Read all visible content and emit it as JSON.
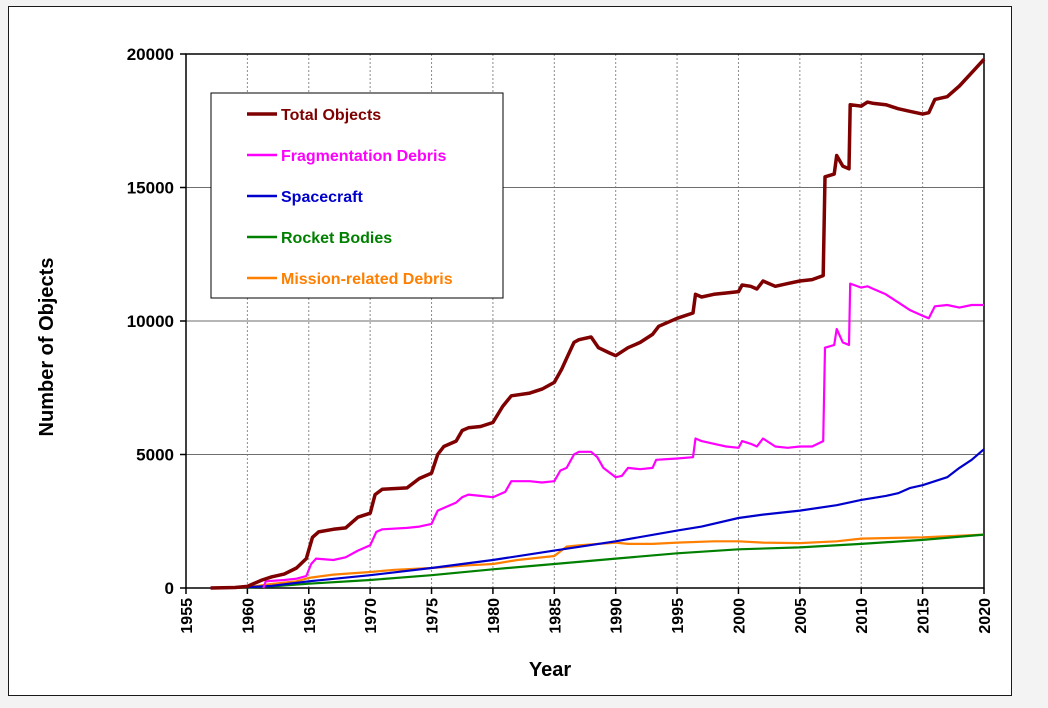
{
  "chart_data": {
    "type": "line",
    "title": "",
    "xlabel": "Year",
    "ylabel": "Number of Objects",
    "xlim": [
      1955,
      2020
    ],
    "ylim": [
      0,
      20000
    ],
    "x_ticks": [
      "1955",
      "1960",
      "1965",
      "1970",
      "1975",
      "1980",
      "1985",
      "1990",
      "1995",
      "2000",
      "2005",
      "2010",
      "2015",
      "2020"
    ],
    "y_ticks": [
      "0",
      "5000",
      "10000",
      "15000",
      "20000"
    ],
    "grid": true,
    "legend_position": "top-left",
    "series": [
      {
        "name": "Total Objects",
        "color": "#7f0000",
        "points": [
          [
            1957,
            0
          ],
          [
            1959,
            20
          ],
          [
            1960,
            60
          ],
          [
            1961.2,
            300
          ],
          [
            1962,
            420
          ],
          [
            1963,
            520
          ],
          [
            1964,
            750
          ],
          [
            1964.8,
            1100
          ],
          [
            1965.3,
            1900
          ],
          [
            1965.8,
            2100
          ],
          [
            1967,
            2200
          ],
          [
            1968,
            2250
          ],
          [
            1969,
            2650
          ],
          [
            1970,
            2800
          ],
          [
            1970.4,
            3500
          ],
          [
            1971,
            3700
          ],
          [
            1973,
            3750
          ],
          [
            1974,
            4100
          ],
          [
            1975,
            4300
          ],
          [
            1975.5,
            5000
          ],
          [
            1976,
            5300
          ],
          [
            1977,
            5500
          ],
          [
            1977.5,
            5900
          ],
          [
            1978,
            6000
          ],
          [
            1979,
            6050
          ],
          [
            1980,
            6200
          ],
          [
            1980.8,
            6800
          ],
          [
            1981.5,
            7200
          ],
          [
            1983,
            7300
          ],
          [
            1984,
            7450
          ],
          [
            1985,
            7700
          ],
          [
            1985.6,
            8200
          ],
          [
            1986,
            8600
          ],
          [
            1986.6,
            9200
          ],
          [
            1987,
            9300
          ],
          [
            1988,
            9400
          ],
          [
            1988.6,
            9000
          ],
          [
            1989.5,
            8800
          ],
          [
            1990,
            8700
          ],
          [
            1991,
            9000
          ],
          [
            1992,
            9200
          ],
          [
            1993,
            9500
          ],
          [
            1993.5,
            9800
          ],
          [
            1995,
            10100
          ],
          [
            1996.3,
            10300
          ],
          [
            1996.5,
            11000
          ],
          [
            1997,
            10900
          ],
          [
            1998,
            11000
          ],
          [
            1999,
            11050
          ],
          [
            2000,
            11100
          ],
          [
            2000.3,
            11350
          ],
          [
            2001,
            11300
          ],
          [
            2001.5,
            11200
          ],
          [
            2002,
            11500
          ],
          [
            2003,
            11300
          ],
          [
            2004,
            11400
          ],
          [
            2005,
            11500
          ],
          [
            2006,
            11550
          ],
          [
            2006.9,
            11700
          ],
          [
            2007.05,
            15400
          ],
          [
            2007.8,
            15500
          ],
          [
            2008,
            16200
          ],
          [
            2008.5,
            15800
          ],
          [
            2009,
            15700
          ],
          [
            2009.1,
            18100
          ],
          [
            2010,
            18050
          ],
          [
            2010.5,
            18200
          ],
          [
            2011,
            18150
          ],
          [
            2012,
            18100
          ],
          [
            2013,
            17950
          ],
          [
            2014,
            17850
          ],
          [
            2015,
            17750
          ],
          [
            2015.5,
            17800
          ],
          [
            2016,
            18300
          ],
          [
            2017,
            18400
          ],
          [
            2018,
            18800
          ],
          [
            2019,
            19300
          ],
          [
            2020,
            19800
          ]
        ]
      },
      {
        "name": "Fragmentation Debris",
        "color": "#ff00ff",
        "points": [
          [
            1961.3,
            0
          ],
          [
            1961.5,
            250
          ],
          [
            1963,
            300
          ],
          [
            1964,
            350
          ],
          [
            1964.8,
            450
          ],
          [
            1965.2,
            900
          ],
          [
            1965.6,
            1100
          ],
          [
            1967,
            1050
          ],
          [
            1968,
            1150
          ],
          [
            1969,
            1400
          ],
          [
            1970,
            1600
          ],
          [
            1970.5,
            2100
          ],
          [
            1971,
            2200
          ],
          [
            1973,
            2250
          ],
          [
            1974,
            2300
          ],
          [
            1975,
            2400
          ],
          [
            1975.5,
            2900
          ],
          [
            1976.5,
            3100
          ],
          [
            1977,
            3200
          ],
          [
            1977.5,
            3400
          ],
          [
            1978,
            3500
          ],
          [
            1979,
            3450
          ],
          [
            1980,
            3400
          ],
          [
            1981,
            3600
          ],
          [
            1981.5,
            4000
          ],
          [
            1983,
            4000
          ],
          [
            1984,
            3950
          ],
          [
            1985,
            4000
          ],
          [
            1985.5,
            4400
          ],
          [
            1986,
            4500
          ],
          [
            1986.6,
            5000
          ],
          [
            1987,
            5100
          ],
          [
            1988,
            5100
          ],
          [
            1988.5,
            4900
          ],
          [
            1989,
            4500
          ],
          [
            1990,
            4150
          ],
          [
            1990.5,
            4200
          ],
          [
            1991,
            4500
          ],
          [
            1992,
            4450
          ],
          [
            1993,
            4500
          ],
          [
            1993.3,
            4800
          ],
          [
            1995,
            4850
          ],
          [
            1996.3,
            4900
          ],
          [
            1996.5,
            5600
          ],
          [
            1997,
            5500
          ],
          [
            1998,
            5400
          ],
          [
            1999,
            5300
          ],
          [
            2000,
            5250
          ],
          [
            2000.3,
            5500
          ],
          [
            2001,
            5400
          ],
          [
            2001.5,
            5300
          ],
          [
            2002,
            5600
          ],
          [
            2003,
            5300
          ],
          [
            2004,
            5250
          ],
          [
            2005,
            5300
          ],
          [
            2006,
            5300
          ],
          [
            2006.9,
            5500
          ],
          [
            2007.05,
            9000
          ],
          [
            2007.8,
            9100
          ],
          [
            2008,
            9700
          ],
          [
            2008.5,
            9200
          ],
          [
            2009,
            9100
          ],
          [
            2009.1,
            11400
          ],
          [
            2010,
            11250
          ],
          [
            2010.5,
            11300
          ],
          [
            2011,
            11200
          ],
          [
            2012,
            11000
          ],
          [
            2013,
            10700
          ],
          [
            2014,
            10400
          ],
          [
            2015,
            10200
          ],
          [
            2015.5,
            10100
          ],
          [
            2016,
            10550
          ],
          [
            2017,
            10600
          ],
          [
            2018,
            10500
          ],
          [
            2019,
            10600
          ],
          [
            2020,
            10600
          ]
        ]
      },
      {
        "name": "Spacecraft",
        "color": "#0000cc",
        "points": [
          [
            1957,
            0
          ],
          [
            1960,
            30
          ],
          [
            1962,
            80
          ],
          [
            1965,
            250
          ],
          [
            1970,
            480
          ],
          [
            1975,
            750
          ],
          [
            1980,
            1050
          ],
          [
            1985,
            1400
          ],
          [
            1990,
            1750
          ],
          [
            1995,
            2150
          ],
          [
            1997,
            2300
          ],
          [
            2000,
            2620
          ],
          [
            2002,
            2750
          ],
          [
            2005,
            2900
          ],
          [
            2008,
            3100
          ],
          [
            2010,
            3300
          ],
          [
            2012,
            3450
          ],
          [
            2013,
            3550
          ],
          [
            2014,
            3750
          ],
          [
            2015,
            3850
          ],
          [
            2016,
            4000
          ],
          [
            2017,
            4150
          ],
          [
            2018,
            4500
          ],
          [
            2019,
            4800
          ],
          [
            2020,
            5200
          ]
        ]
      },
      {
        "name": "Rocket Bodies",
        "color": "#008000",
        "points": [
          [
            1957,
            0
          ],
          [
            1960,
            20
          ],
          [
            1962,
            60
          ],
          [
            1965,
            160
          ],
          [
            1970,
            300
          ],
          [
            1975,
            480
          ],
          [
            1980,
            700
          ],
          [
            1985,
            900
          ],
          [
            1990,
            1100
          ],
          [
            1995,
            1300
          ],
          [
            2000,
            1450
          ],
          [
            2005,
            1520
          ],
          [
            2010,
            1650
          ],
          [
            2015,
            1800
          ],
          [
            2020,
            2000
          ]
        ]
      },
      {
        "name": "Mission-related Debris",
        "color": "#ff7f00",
        "points": [
          [
            1957,
            0
          ],
          [
            1960,
            30
          ],
          [
            1962,
            150
          ],
          [
            1964,
            250
          ],
          [
            1965,
            380
          ],
          [
            1967,
            500
          ],
          [
            1970,
            600
          ],
          [
            1972,
            680
          ],
          [
            1975,
            750
          ],
          [
            1978,
            850
          ],
          [
            1980,
            900
          ],
          [
            1982,
            1050
          ],
          [
            1985,
            1200
          ],
          [
            1986,
            1550
          ],
          [
            1987,
            1600
          ],
          [
            1990,
            1700
          ],
          [
            1991,
            1650
          ],
          [
            1993,
            1650
          ],
          [
            1995,
            1700
          ],
          [
            1998,
            1750
          ],
          [
            2000,
            1750
          ],
          [
            2002,
            1700
          ],
          [
            2005,
            1680
          ],
          [
            2008,
            1750
          ],
          [
            2010,
            1850
          ],
          [
            2015,
            1900
          ],
          [
            2020,
            2000
          ]
        ]
      }
    ]
  }
}
